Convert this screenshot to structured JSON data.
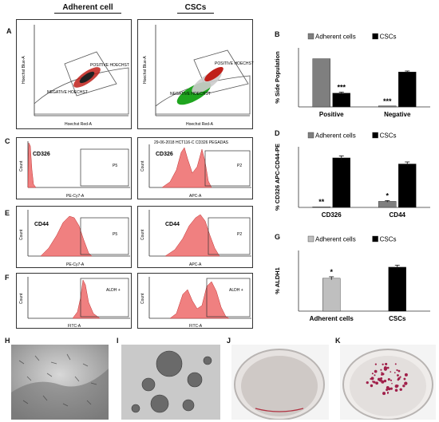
{
  "column_headers": {
    "left": "Adherent cell",
    "right": "CSCs"
  },
  "panel_letters": {
    "A": "A",
    "B": "B",
    "C": "C",
    "D": "D",
    "E": "E",
    "F": "F",
    "G": "G",
    "H": "H",
    "I": "I",
    "J": "J",
    "K": "K"
  },
  "panel_A": {
    "left": {
      "ylabel": "Hoechst Blue-A",
      "xlabel": "Hoechst Red-A",
      "gate_pos": "POSITIVE HOECHST",
      "gate_neg": "NEGATIVE HOECHST"
    },
    "right": {
      "ylabel": "Hoechst Blue-A",
      "xlabel": "Hoechst Red-A",
      "gate_pos": "POSITIVE HOECHST",
      "gate_neg": "NEGATIVE HOECHST"
    },
    "colors": {
      "gate_line": "#555555",
      "cells_red": "#c0201a",
      "cells_green": "#1fa51f",
      "cells_dark": "#222222"
    }
  },
  "panel_C": {
    "left": {
      "marker": "CD326",
      "gate": "P5",
      "xlabel": "PE-Cy7-A",
      "ylabel": "Count"
    },
    "right": {
      "marker": "CD326",
      "gate": "P2",
      "xlabel": "APC-A",
      "ylabel": "Count",
      "header": "29-06-2018 HCT116-C CD326 PEGADAS"
    }
  },
  "panel_E": {
    "left": {
      "marker": "CD44",
      "gate": "P5",
      "xlabel": "PE-Cy7-A",
      "ylabel": "Count"
    },
    "right": {
      "marker": "CD44",
      "gate": "P2",
      "xlabel": "APC-A",
      "ylabel": "Count"
    }
  },
  "panel_F": {
    "left": {
      "gate": "ALDH +",
      "xlabel": "FITC-A",
      "ylabel": "Count"
    },
    "right": {
      "gate": "ALDH +",
      "xlabel": "FITC-A",
      "ylabel": "Count"
    }
  },
  "histogram_color": "#f08080",
  "chart_data": [
    {
      "panel": "B",
      "type": "bar",
      "categories": [
        "Positive",
        "Negative"
      ],
      "ylabel": "% Side Population",
      "series": [
        {
          "name": "Adherent cells",
          "values": [
            98,
            2
          ],
          "errors": [
            0,
            0
          ],
          "color": "#7f7f7f"
        },
        {
          "name": "CSCs",
          "values": [
            28,
            71
          ],
          "errors": [
            2,
            2
          ],
          "color": "#000000"
        }
      ],
      "annotations": [
        {
          "category": "Positive",
          "series": "CSCs",
          "text": "***"
        },
        {
          "category": "Negative",
          "series": "Adherent cells",
          "text": "***"
        }
      ],
      "ylim": [
        0,
        120
      ],
      "legend": "top"
    },
    {
      "panel": "D",
      "type": "bar",
      "categories": [
        "CD326",
        "CD44"
      ],
      "ylabel": "% CD326 APC-CD44-PE",
      "series": [
        {
          "name": "Adherent cells",
          "values": [
            0.3,
            3
          ],
          "errors": [
            0,
            0.4
          ],
          "color": "#7f7f7f"
        },
        {
          "name": "CSCs",
          "values": [
            24.5,
            21.5
          ],
          "errors": [
            1,
            1
          ],
          "color": "#000000"
        }
      ],
      "annotations": [
        {
          "category": "CD326",
          "series": "Adherent cells",
          "text": "**"
        },
        {
          "category": "CD44",
          "series": "Adherent cells",
          "text": "*"
        }
      ],
      "ylim": [
        0,
        30
      ],
      "legend": "top"
    },
    {
      "panel": "G",
      "type": "bar",
      "categories": [
        "Adherent cells",
        "CSCs"
      ],
      "ylabel": "% ALDH1",
      "series": [
        {
          "name": "Adherent cells",
          "values": [
            65,
            null
          ],
          "errors": [
            3,
            null
          ],
          "color": "#bfbfbf"
        },
        {
          "name": "CSCs",
          "values": [
            null,
            87
          ],
          "errors": [
            null,
            4
          ],
          "color": "#000000"
        }
      ],
      "annotations": [
        {
          "category": "Adherent cells",
          "series": "Adherent cells",
          "text": "*"
        }
      ],
      "ylim": [
        0,
        120
      ],
      "legend": "top"
    }
  ]
}
